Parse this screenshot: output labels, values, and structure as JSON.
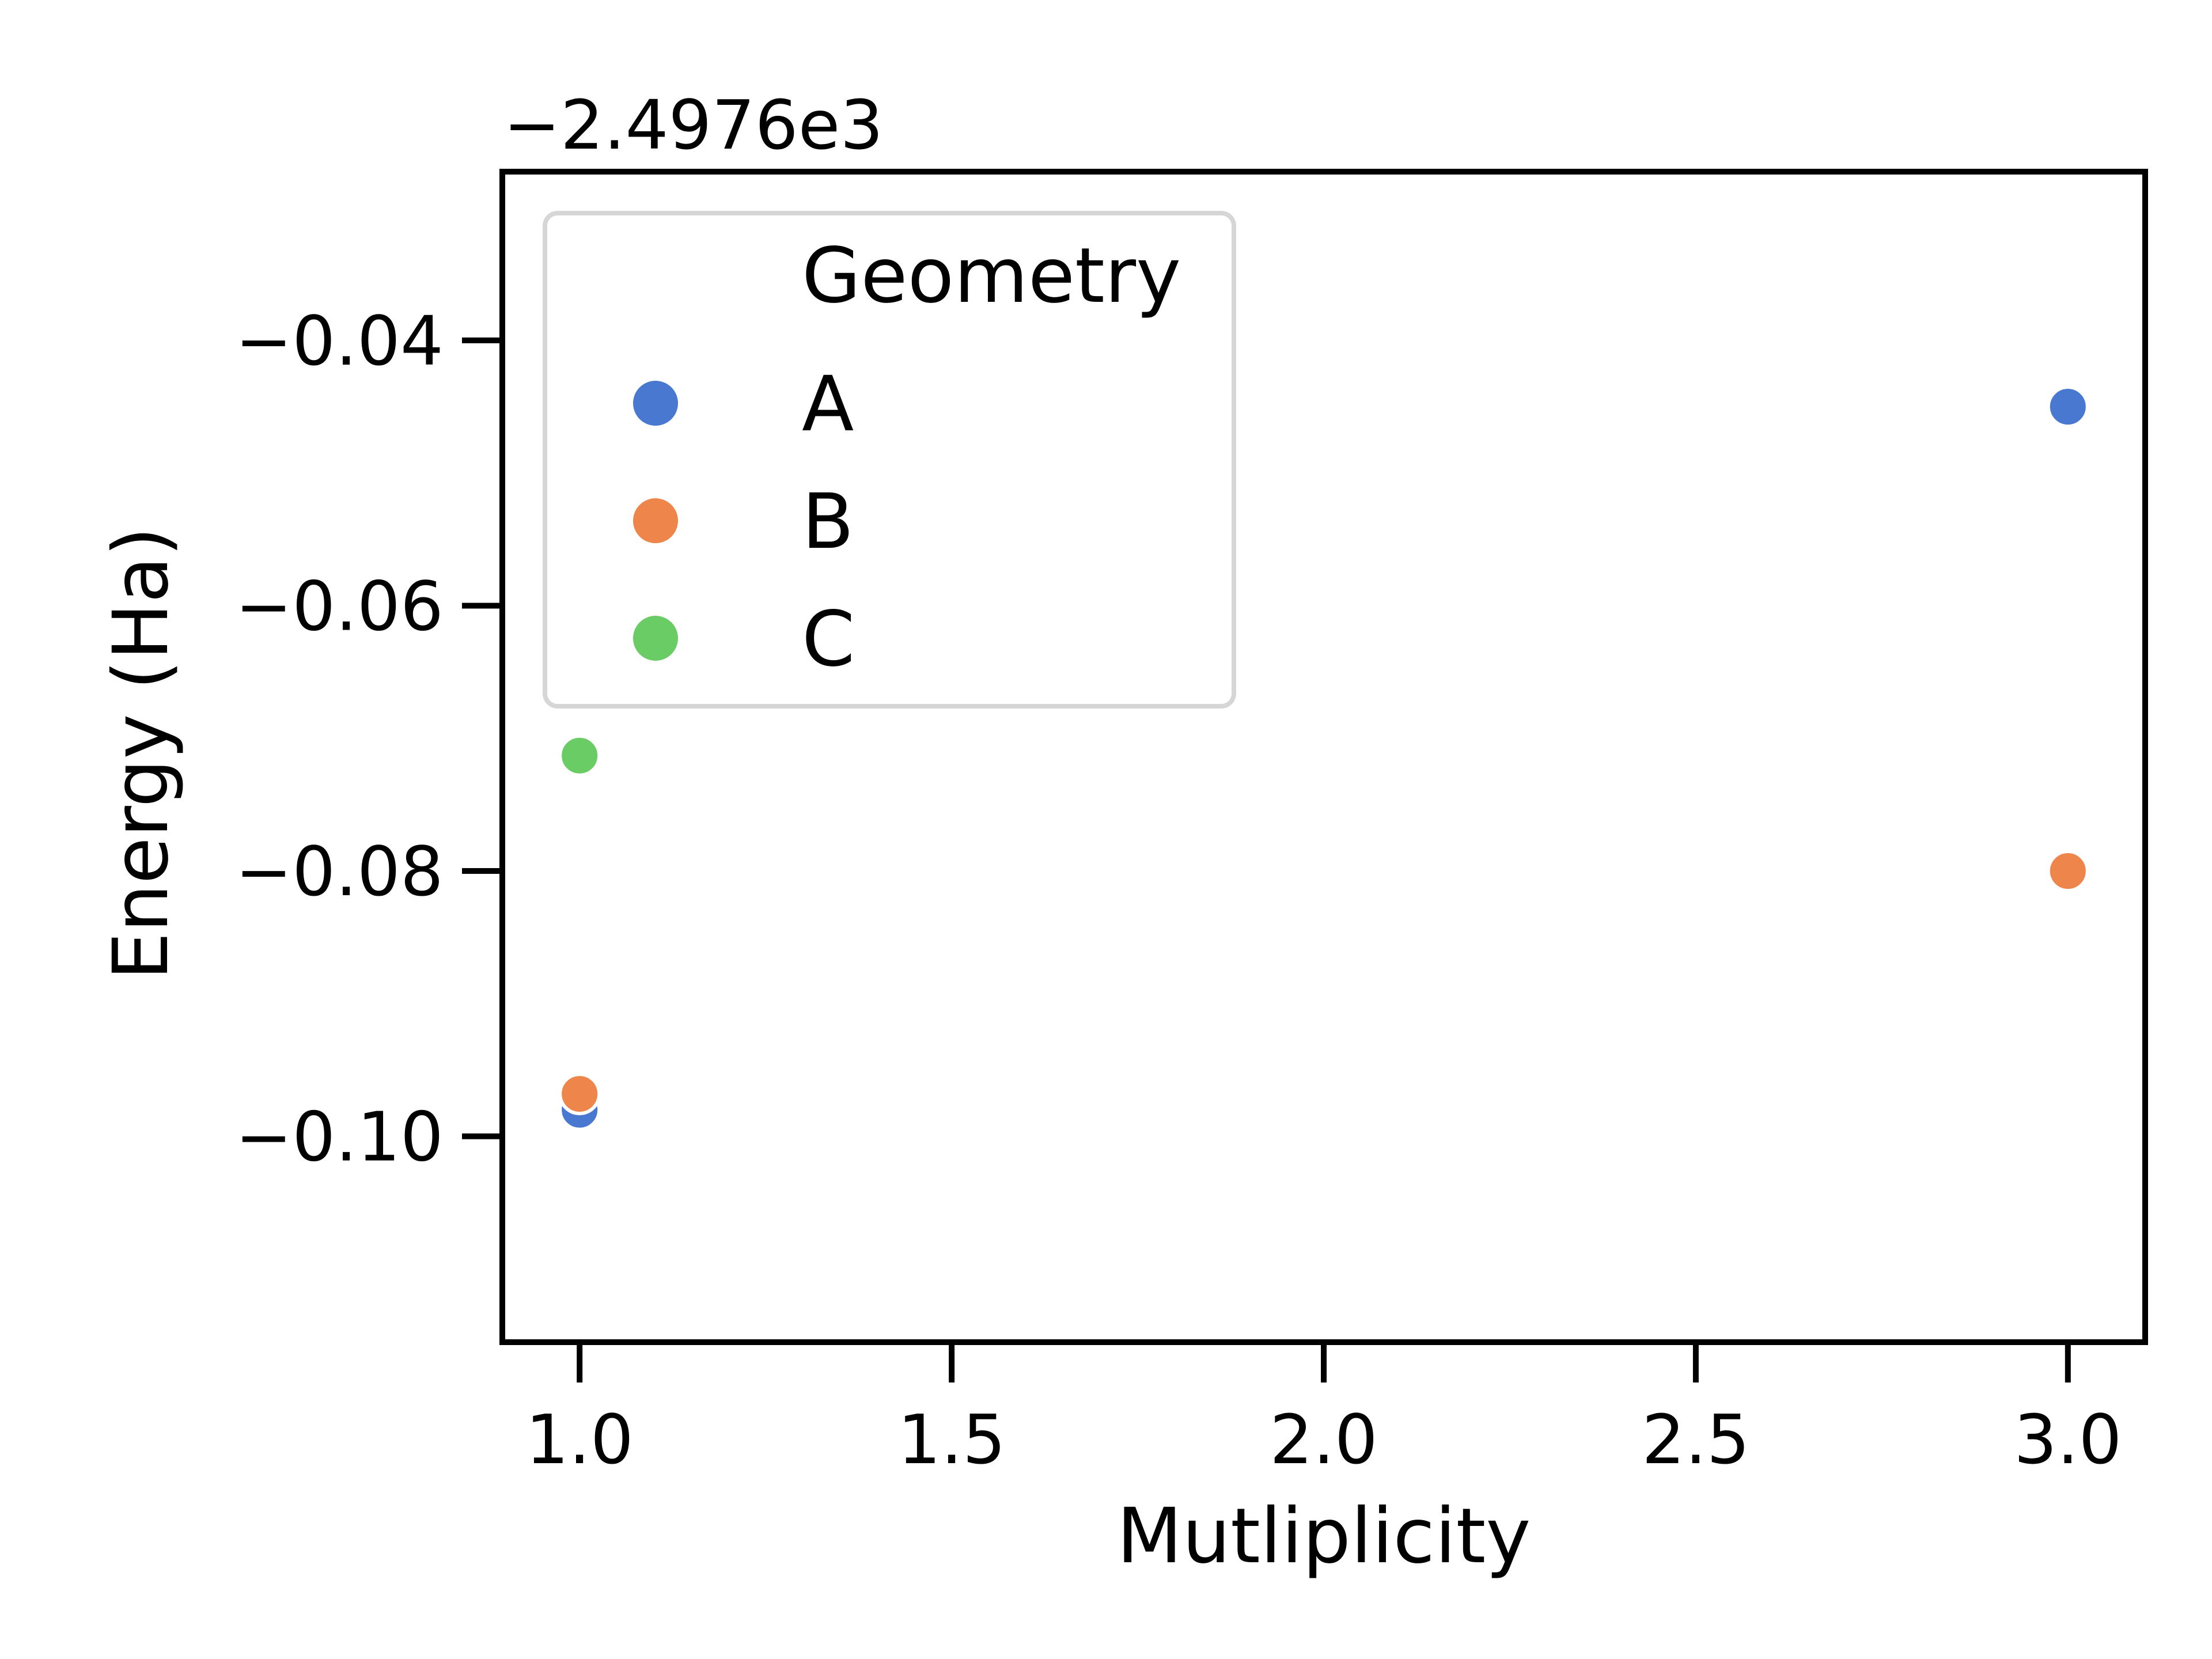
{
  "chart_data": {
    "type": "scatter",
    "title": "",
    "xlabel": "Mutliplicity",
    "ylabel": "Energy (Ha)",
    "offset_label": "−2.4976e3",
    "xlim": [
      0.9,
      3.1
    ],
    "ylim": [
      -0.1153,
      -0.0275
    ],
    "xticks": [
      1.0,
      1.5,
      2.0,
      2.5,
      3.0
    ],
    "xtick_labels": [
      "1.0",
      "1.5",
      "2.0",
      "2.5",
      "3.0"
    ],
    "yticks": [
      -0.04,
      -0.06,
      -0.08,
      -0.1
    ],
    "ytick_labels": [
      "−0.04",
      "−0.06",
      "−0.08",
      "−0.10"
    ],
    "grid": false,
    "legend": {
      "title": "Geometry",
      "position": "upper-left"
    },
    "series": [
      {
        "name": "A",
        "color": "#4878d0",
        "points": [
          {
            "x": 1.0,
            "y": -0.098
          },
          {
            "x": 3.0,
            "y": -0.045
          }
        ]
      },
      {
        "name": "B",
        "color": "#ee854a",
        "points": [
          {
            "x": 1.0,
            "y": -0.0968
          },
          {
            "x": 3.0,
            "y": -0.08
          }
        ]
      },
      {
        "name": "C",
        "color": "#6acc64",
        "points": [
          {
            "x": 1.0,
            "y": -0.0713
          }
        ]
      }
    ]
  }
}
